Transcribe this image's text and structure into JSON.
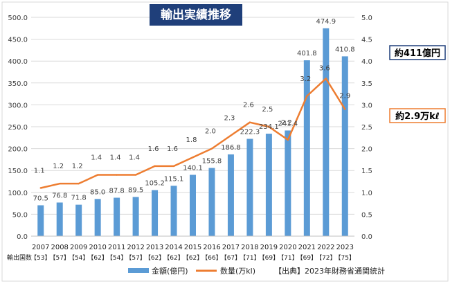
{
  "chart_data": {
    "type": "bar",
    "title": "輸出実績推移",
    "categories": [
      "2007",
      "2008",
      "2009",
      "2010",
      "2011",
      "2012",
      "2013",
      "2014",
      "2015",
      "2016",
      "2017",
      "2018",
      "2019",
      "2020",
      "2021",
      "2022",
      "2023"
    ],
    "export_countries_label": "輸出国数",
    "export_countries": [
      "【53】",
      "【57】",
      "【54】",
      "【62】",
      "【54】",
      "【57】",
      "【62】",
      "【62】",
      "【62】",
      "【66】",
      "【67】",
      "【71】",
      "【69】",
      "【71】",
      "【69】",
      "【72】",
      "【75】"
    ],
    "series": [
      {
        "name": "金額(億円)",
        "type": "bar",
        "axis": "left",
        "color": "#5B9BD5",
        "values": [
          70.5,
          76.8,
          71.8,
          85.0,
          87.8,
          89.5,
          105.2,
          115.1,
          140.1,
          155.8,
          186.8,
          222.3,
          234.1,
          241.4,
          401.8,
          474.9,
          410.8
        ],
        "labels": [
          "70.5",
          "76.8",
          "71.8",
          "85.0",
          "87.8",
          "89.5",
          "105.2",
          "115.1",
          "140.1",
          "155.8",
          "186.8",
          "222.3",
          "234.1",
          "241.4",
          "401.8",
          "474.9",
          "410.8"
        ]
      },
      {
        "name": "数量(万kl)",
        "type": "line",
        "axis": "right",
        "color": "#ED7D31",
        "values": [
          1.1,
          1.2,
          1.2,
          1.4,
          1.4,
          1.4,
          1.6,
          1.6,
          1.8,
          2.0,
          2.3,
          2.6,
          2.5,
          2.2,
          3.2,
          3.6,
          2.9
        ],
        "labels": [
          "1.1",
          "1.2",
          "1.2",
          "1.4",
          "1.4",
          "1.4",
          "1.6",
          "1.6",
          "1.8",
          "2.0",
          "2.3",
          "2.6",
          "2.5",
          "2.2",
          "3.2",
          "3.6",
          "2.9"
        ]
      }
    ],
    "y_left": {
      "range": [
        0,
        500
      ],
      "ticks": [
        "0.0",
        "50.0",
        "100.0",
        "150.0",
        "200.0",
        "250.0",
        "300.0",
        "350.0",
        "400.0",
        "450.0",
        "500.0"
      ]
    },
    "y_right": {
      "range": [
        0,
        5
      ],
      "ticks": [
        "0.0",
        "0.5",
        "1.0",
        "1.5",
        "2.0",
        "2.5",
        "3.0",
        "3.5",
        "4.0",
        "4.5",
        "5.0"
      ]
    },
    "grid": true,
    "legend_position": "bottom",
    "callouts": [
      {
        "text": "約411億円",
        "border_color": "#1F3F7A",
        "target_series": 0,
        "target_index": 16
      },
      {
        "text": "約2.9万kℓ",
        "border_color": "#ED7D31",
        "target_series": 1,
        "target_index": 16
      }
    ],
    "source_note": "【出典】2023年財務省通関統計"
  }
}
